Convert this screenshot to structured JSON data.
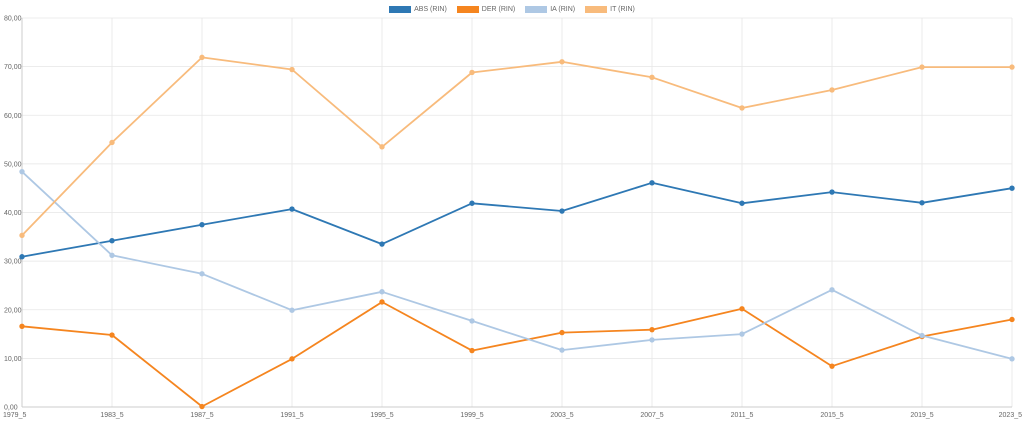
{
  "chart_data": {
    "type": "line",
    "x": [
      "1979_5",
      "1983_5",
      "1987_5",
      "1991_5",
      "1995_5",
      "1999_5",
      "2003_5",
      "2007_5",
      "2011_5",
      "2015_5",
      "2019_5",
      "2023_5"
    ],
    "ylim": [
      0,
      80
    ],
    "yticks": [
      "0,00",
      "10,00",
      "20,00",
      "30,00",
      "40,00",
      "50,00",
      "60,00",
      "70,00",
      "80,00"
    ],
    "yticks_values": [
      0,
      10,
      20,
      30,
      40,
      50,
      60,
      70,
      80
    ],
    "grid": true,
    "legend_position": "top-center",
    "series": [
      {
        "name": "ABS (RIN)",
        "color": "#2e78b4",
        "values": [
          30.9,
          34.2,
          37.5,
          40.7,
          33.5,
          41.9,
          40.3,
          46.1,
          41.9,
          44.2,
          42.0,
          45.0
        ]
      },
      {
        "name": "DER (RIN)",
        "color": "#f5851f",
        "values": [
          16.6,
          14.8,
          0.1,
          9.9,
          21.6,
          11.6,
          15.3,
          15.9,
          20.2,
          8.4,
          14.5,
          18.0
        ]
      },
      {
        "name": "IA (RIN)",
        "color": "#aec8e4",
        "values": [
          48.4,
          31.2,
          27.4,
          19.9,
          23.7,
          17.7,
          11.7,
          13.8,
          15.0,
          24.1,
          14.7,
          9.9
        ]
      },
      {
        "name": "IT (RIN)",
        "color": "#f8bb7c",
        "values": [
          35.3,
          54.4,
          71.9,
          69.4,
          53.5,
          68.8,
          71.0,
          67.8,
          61.5,
          65.2,
          69.9,
          69.9
        ]
      }
    ]
  }
}
